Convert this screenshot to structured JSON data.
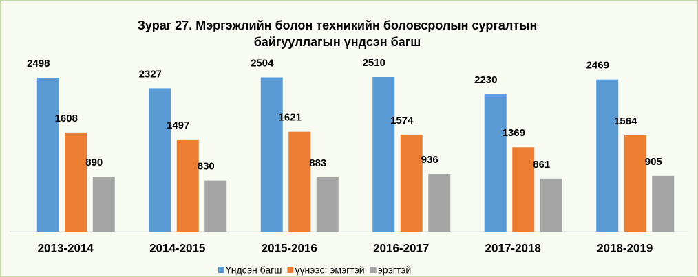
{
  "chart_data": {
    "type": "bar",
    "title": [
      "Зураг 27. Мэргэжлийн болон техникийн боловсролын сургалтын",
      "байгууллагын үндсэн багш"
    ],
    "categories": [
      "2013-2014",
      "2014-2015",
      "2015-2016",
      "2016-2017",
      "2017-2018",
      "2018-2019"
    ],
    "series": [
      {
        "name": "Үндсэн багш",
        "color": "#5b9bd5",
        "values": [
          2498,
          2327,
          2504,
          2510,
          2230,
          2469
        ]
      },
      {
        "name": "үүнээс: эмэгтэй",
        "color": "#ed7d31",
        "values": [
          1608,
          1497,
          1621,
          1574,
          1369,
          1564
        ]
      },
      {
        "name": "эрэгтэй",
        "color": "#a5a5a5",
        "values": [
          890,
          830,
          883,
          936,
          861,
          905
        ]
      }
    ],
    "legend": "bottom"
  }
}
